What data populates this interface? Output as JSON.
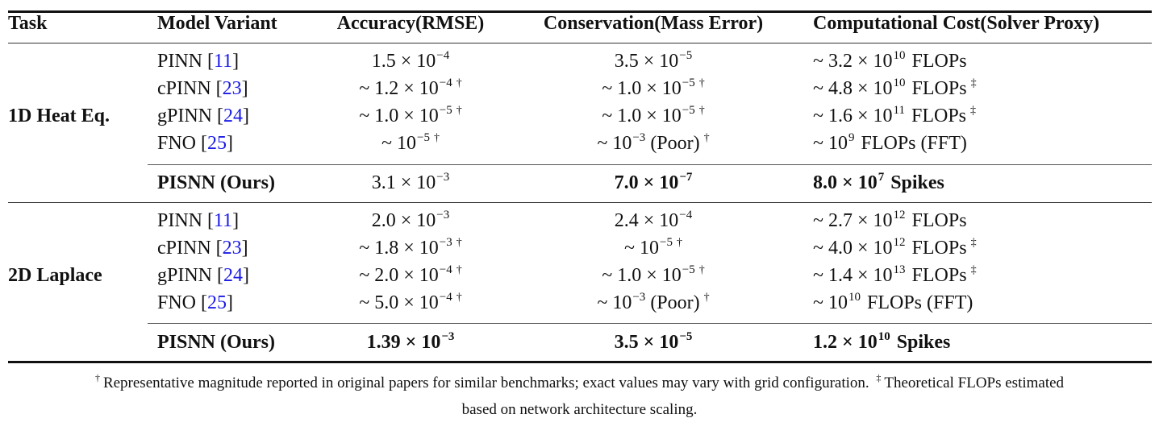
{
  "table": {
    "headers": {
      "task": "Task",
      "model": "Model Variant",
      "accuracy": "Accuracy(RMSE)",
      "conservation": "Conservation(Mass Error)",
      "cost": "Computational Cost(Solver Proxy)"
    },
    "sections": [
      {
        "task": "1D Heat Eq.",
        "rows": [
          {
            "model": "PINN",
            "ref": "11",
            "acc": {
              "approx": "",
              "mant": "1.5",
              "exp": "−4",
              "mark": ""
            },
            "cons": {
              "approx": "",
              "mant": "3.5",
              "exp": "−5",
              "suffix": "",
              "mark": ""
            },
            "cost": {
              "approx": "~ ",
              "mant": "3.2",
              "exp": "10",
              "unit": "FLOPs",
              "mark": ""
            }
          },
          {
            "model": "cPINN",
            "ref": "23",
            "acc": {
              "approx": "~ ",
              "mant": "1.2",
              "exp": "−4",
              "mark": "†"
            },
            "cons": {
              "approx": "~ ",
              "mant": "1.0",
              "exp": "−5",
              "suffix": "",
              "mark": "†"
            },
            "cost": {
              "approx": "~ ",
              "mant": "4.8",
              "exp": "10",
              "unit": "FLOPs",
              "mark": "‡"
            }
          },
          {
            "model": "gPINN",
            "ref": "24",
            "acc": {
              "approx": "~ ",
              "mant": "1.0",
              "exp": "−5",
              "mark": "†"
            },
            "cons": {
              "approx": "~ ",
              "mant": "1.0",
              "exp": "−5",
              "suffix": "",
              "mark": "†"
            },
            "cost": {
              "approx": "~ ",
              "mant": "1.6",
              "exp": "11",
              "unit": "FLOPs",
              "mark": "‡"
            }
          },
          {
            "model": "FNO",
            "ref": "25",
            "acc": {
              "approx": "~ ",
              "mant": "",
              "exp": "−5",
              "mark": "†"
            },
            "cons": {
              "approx": "~ ",
              "mant": "",
              "exp": "−3",
              "suffix": " (Poor)",
              "mark": "†"
            },
            "cost": {
              "approx": "~ ",
              "mant": "",
              "exp": "9",
              "unit": "FLOPs (FFT)",
              "mark": ""
            }
          }
        ],
        "ours": {
          "model": "PISNN (Ours)",
          "acc": {
            "mant": "3.1",
            "exp": "−3",
            "bold": false
          },
          "cons": {
            "mant": "7.0",
            "exp": "−7",
            "bold": true
          },
          "cost": {
            "mant": "8.0",
            "exp": "7",
            "unit": "Spikes",
            "bold": true
          }
        }
      },
      {
        "task": "2D Laplace",
        "rows": [
          {
            "model": "PINN",
            "ref": "11",
            "acc": {
              "approx": "",
              "mant": "2.0",
              "exp": "−3",
              "mark": ""
            },
            "cons": {
              "approx": "",
              "mant": "2.4",
              "exp": "−4",
              "suffix": "",
              "mark": ""
            },
            "cost": {
              "approx": "~ ",
              "mant": "2.7",
              "exp": "12",
              "unit": "FLOPs",
              "mark": ""
            }
          },
          {
            "model": "cPINN",
            "ref": "23",
            "acc": {
              "approx": "~ ",
              "mant": "1.8",
              "exp": "−3",
              "mark": "†"
            },
            "cons": {
              "approx": "~ ",
              "mant": "",
              "exp": "−5",
              "suffix": "",
              "mark": "†"
            },
            "cost": {
              "approx": "~ ",
              "mant": "4.0",
              "exp": "12",
              "unit": "FLOPs",
              "mark": "‡"
            }
          },
          {
            "model": "gPINN",
            "ref": "24",
            "acc": {
              "approx": "~ ",
              "mant": "2.0",
              "exp": "−4",
              "mark": "†"
            },
            "cons": {
              "approx": "~ ",
              "mant": "1.0",
              "exp": "−5",
              "suffix": "",
              "mark": "†"
            },
            "cost": {
              "approx": "~ ",
              "mant": "1.4",
              "exp": "13",
              "unit": "FLOPs",
              "mark": "‡"
            }
          },
          {
            "model": "FNO",
            "ref": "25",
            "acc": {
              "approx": "~ ",
              "mant": "5.0",
              "exp": "−4",
              "mark": "†"
            },
            "cons": {
              "approx": "~ ",
              "mant": "",
              "exp": "−3",
              "suffix": " (Poor)",
              "mark": "†"
            },
            "cost": {
              "approx": "~ ",
              "mant": "",
              "exp": "10",
              "unit": "FLOPs (FFT)",
              "mark": ""
            }
          }
        ],
        "ours": {
          "model": "PISNN (Ours)",
          "acc": {
            "mant": "1.39",
            "exp": "−3",
            "bold": true
          },
          "cons": {
            "mant": "3.5",
            "exp": "−5",
            "bold": true
          },
          "cost": {
            "mant": "1.2",
            "exp": "10",
            "unit": "Spikes",
            "bold": true
          }
        }
      }
    ]
  },
  "footnote": {
    "dagger_mark": "†",
    "dagger_text": "Representative magnitude reported in original papers for similar benchmarks; exact values may vary with grid configuration.",
    "ddagger_mark": "‡",
    "ddagger_text_line1": "Theoretical FLOPs estimated",
    "line2": "based on network architecture scaling."
  },
  "colors": {
    "text": "#111111",
    "citation_link": "#1a1ae6",
    "rule": "#111111"
  }
}
